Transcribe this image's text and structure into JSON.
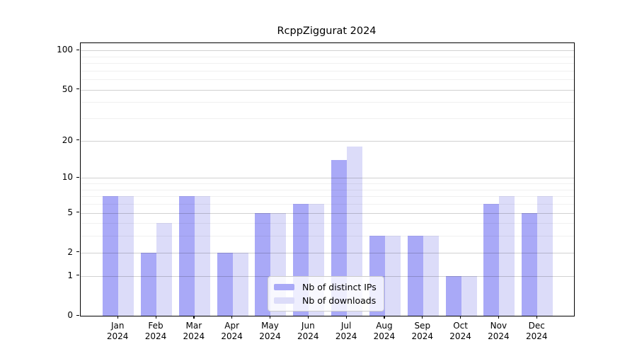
{
  "title": "RcppZiggurat 2024",
  "chart_data": {
    "type": "bar",
    "title": "RcppZiggurat 2024",
    "year_label": "2024",
    "months": [
      "Jan",
      "Feb",
      "Mar",
      "Apr",
      "May",
      "Jun",
      "Jul",
      "Aug",
      "Sep",
      "Oct",
      "Nov",
      "Dec"
    ],
    "series": [
      {
        "name": "Nb of distinct IPs",
        "color": "#a9a9f7",
        "values": [
          7,
          2,
          7,
          2,
          5,
          6,
          14,
          3,
          3,
          1,
          6,
          5
        ]
      },
      {
        "name": "Nb of downloads",
        "color": "#dcdcf9",
        "values": [
          7,
          4,
          7,
          2,
          5,
          6,
          18,
          3,
          3,
          1,
          7,
          7
        ]
      }
    ],
    "y_axis": {
      "scale": "log1p",
      "major_ticks": [
        0,
        1,
        2,
        5,
        10,
        20,
        50,
        100
      ],
      "minor_gridlines": [
        3,
        4,
        6,
        7,
        8,
        9,
        30,
        40,
        60,
        70,
        80,
        90
      ],
      "top_value_approx": 115
    },
    "x_axis": {
      "tick_label_line2": "2024"
    },
    "legend": {
      "position": "bottom-center",
      "items": [
        "Nb of distinct IPs",
        "Nb of downloads"
      ]
    },
    "grid": "horizontal gridlines drawn over bars",
    "frame": true
  },
  "colors": {
    "bar_distinct_ips": "#a9a9f7",
    "bar_downloads": "#dcdcf9",
    "axis": "#000000",
    "grid_major": "rgba(0,0,0,0.18)",
    "grid_minor": "rgba(0,0,0,0.06)",
    "legend_border": "#cccccc",
    "text": "#000000"
  }
}
